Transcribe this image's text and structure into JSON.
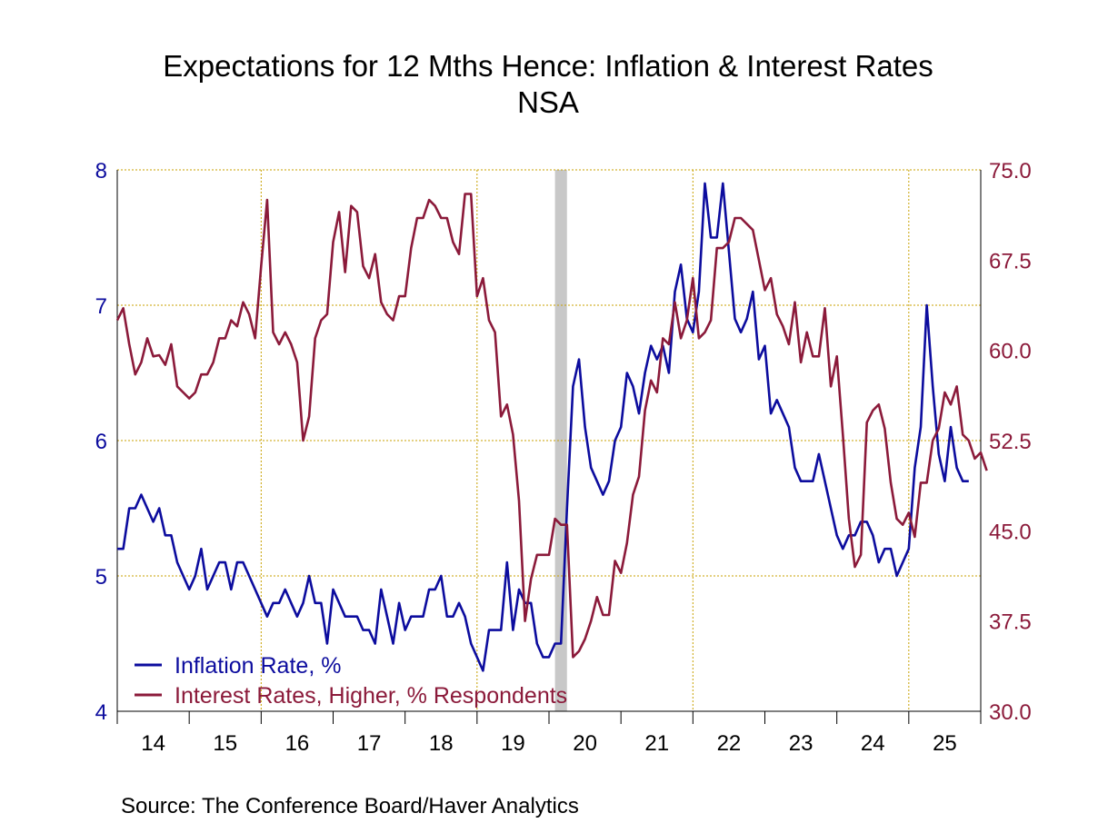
{
  "chart_data": {
    "type": "line",
    "title": "Expectations for 12 Mths Hence: Inflation & Interest Rates",
    "subtitle": "NSA",
    "source": "Source:  The Conference Board/Haver Analytics",
    "x_start": "2014-01",
    "x_end": "2025-12",
    "x_tick_labels": [
      "14",
      "15",
      "16",
      "17",
      "18",
      "19",
      "20",
      "21",
      "22",
      "23",
      "24",
      "25"
    ],
    "gridlines": "on",
    "recession_shading": {
      "start": "2020-02",
      "end": "2020-04"
    },
    "legend_position": "bottom-left",
    "y_left": {
      "range": [
        4,
        8
      ],
      "ticks": [
        "4",
        "5",
        "6",
        "7",
        "8"
      ],
      "color": "#0c0c9e"
    },
    "y_right": {
      "range": [
        30.0,
        75.0
      ],
      "ticks": [
        "30.0",
        "37.5",
        "45.0",
        "52.5",
        "60.0",
        "67.5",
        "75.0"
      ],
      "color": "#8b1a3a"
    },
    "series": [
      {
        "name": "Inflation Rate, %",
        "axis": "left",
        "color": "#0c0c9e",
        "values": [
          5.2,
          5.2,
          5.5,
          5.5,
          5.6,
          5.5,
          5.4,
          5.5,
          5.3,
          5.3,
          5.1,
          5.0,
          4.9,
          5.0,
          5.2,
          4.9,
          5.0,
          5.1,
          5.1,
          4.9,
          5.1,
          5.1,
          5.0,
          4.9,
          4.8,
          4.7,
          4.8,
          4.8,
          4.9,
          4.8,
          4.7,
          4.8,
          5.0,
          4.8,
          4.8,
          4.5,
          4.9,
          4.8,
          4.7,
          4.7,
          4.7,
          4.6,
          4.6,
          4.5,
          4.9,
          4.7,
          4.5,
          4.8,
          4.6,
          4.7,
          4.7,
          4.7,
          4.9,
          4.9,
          5.0,
          4.7,
          4.7,
          4.8,
          4.7,
          4.5,
          4.4,
          4.3,
          4.6,
          4.6,
          4.6,
          5.1,
          4.6,
          4.9,
          4.8,
          4.8,
          4.5,
          4.4,
          4.4,
          4.5,
          4.5,
          5.5,
          6.4,
          6.6,
          6.1,
          5.8,
          5.7,
          5.6,
          5.7,
          6.0,
          6.1,
          6.5,
          6.4,
          6.2,
          6.5,
          6.7,
          6.6,
          6.7,
          6.5,
          7.1,
          7.3,
          6.9,
          6.8,
          7.1,
          7.9,
          7.5,
          7.5,
          7.9,
          7.4,
          6.9,
          6.8,
          6.9,
          7.1,
          6.6,
          6.7,
          6.2,
          6.3,
          6.2,
          6.1,
          5.8,
          5.7,
          5.7,
          5.7,
          5.9,
          5.7,
          5.5,
          5.3,
          5.2,
          5.3,
          5.3,
          5.4,
          5.4,
          5.3,
          5.1,
          5.2,
          5.2,
          5.0,
          5.1,
          5.2,
          5.8,
          6.1,
          7.0,
          6.4,
          5.9,
          5.7,
          6.1,
          5.8,
          5.7,
          5.7
        ]
      },
      {
        "name": "Interest Rates, Higher, % Respondents",
        "axis": "right",
        "color": "#8b1a3a",
        "values": [
          62.5,
          63.5,
          60.5,
          58.0,
          59.0,
          61.0,
          59.5,
          59.6,
          58.8,
          60.5,
          57.0,
          56.5,
          56.0,
          56.5,
          58.0,
          58.0,
          59.0,
          61.0,
          61.0,
          62.5,
          62.0,
          64.0,
          63.0,
          61.0,
          67.0,
          72.5,
          61.5,
          60.5,
          61.5,
          60.5,
          59.0,
          52.5,
          54.5,
          61.0,
          62.5,
          63.0,
          69.0,
          71.5,
          66.5,
          72.0,
          71.5,
          67.0,
          66.0,
          68.0,
          64.0,
          63.0,
          62.5,
          64.5,
          64.5,
          68.5,
          71.0,
          71.0,
          72.5,
          72.0,
          71.0,
          71.0,
          69.0,
          68.0,
          73.0,
          73.0,
          64.5,
          66.0,
          62.5,
          61.5,
          54.5,
          55.5,
          53.0,
          47.5,
          37.5,
          41.0,
          43.0,
          43.0,
          43.0,
          46.0,
          45.5,
          45.5,
          34.5,
          35.0,
          36.0,
          37.5,
          39.5,
          38.0,
          38.0,
          42.5,
          41.5,
          44.0,
          48.0,
          49.5,
          55.0,
          57.5,
          56.5,
          61.0,
          60.5,
          64.0,
          61.0,
          62.5,
          66.0,
          61.0,
          61.5,
          62.5,
          68.5,
          68.5,
          69.0,
          71.0,
          71.0,
          70.5,
          70.0,
          67.5,
          65.0,
          66.0,
          63.0,
          62.0,
          60.5,
          64.0,
          59.0,
          61.5,
          59.5,
          59.5,
          63.5,
          57.0,
          59.5,
          53.0,
          46.0,
          42.0,
          43.0,
          54.0,
          55.0,
          55.5,
          53.5,
          49.0,
          46.0,
          45.5,
          46.5,
          44.5,
          49.0,
          49.0,
          52.5,
          53.5,
          56.5,
          55.5,
          57.0,
          53.0,
          52.5,
          51.0,
          51.5,
          50.0
        ]
      }
    ]
  }
}
